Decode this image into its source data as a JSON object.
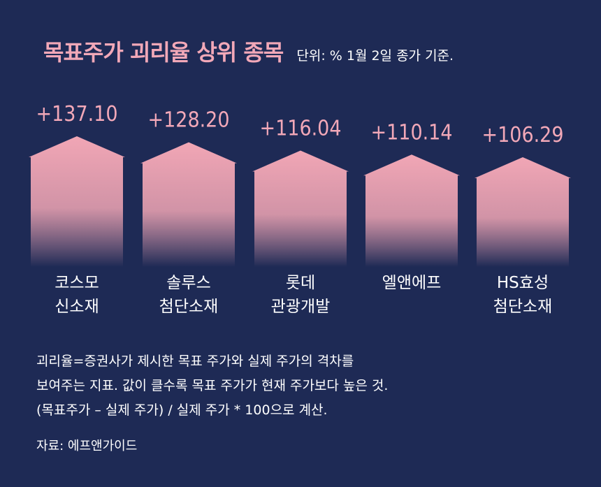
{
  "header": {
    "title": "목표주가 괴리율 상위 종목",
    "unit_note": "단위: %   1월 2일 종가 기준."
  },
  "chart_data": {
    "type": "bar",
    "title": "목표주가 괴리율 상위 종목",
    "xlabel": "",
    "ylabel": "",
    "categories": [
      [
        "코스모",
        "신소재"
      ],
      [
        "솔루스",
        "첨단소재"
      ],
      [
        "롯데",
        "관광개발"
      ],
      [
        "엘앤에프"
      ],
      [
        "HS효성",
        "첨단소재"
      ]
    ],
    "values": [
      137.1,
      128.2,
      116.04,
      110.14,
      106.29
    ],
    "value_labels": [
      "+137.10",
      "+128.20",
      "+116.04",
      "+110.14",
      "+106.29"
    ],
    "colors": {
      "bar_top": "#f1a6b5",
      "bar_bottom": "#1e2a55",
      "label": "#f2a8b8"
    }
  },
  "notes": [
    "괴리율=증권사가 제시한 목표 주가와 실제 주가의 격차를",
    "보여주는 지표. 값이 클수록 목표 주가가 현재 주가보다 높은 것.",
    "(목표주가 – 실제 주가) / 실제 주가 * 100으로 계산."
  ],
  "source": "자료: 에프앤가이드",
  "colors": {
    "background": "#1e2a55",
    "accent": "#f2a8b8"
  }
}
